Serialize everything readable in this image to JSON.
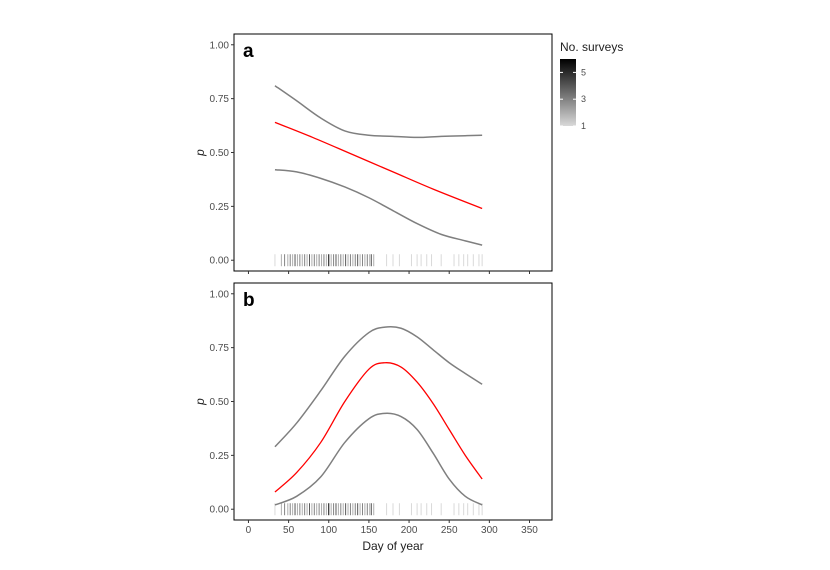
{
  "chart_data": [
    {
      "type": "line",
      "panel_label": "a",
      "ylabel": "p",
      "xlabel": "",
      "xlim": [
        0,
        360
      ],
      "ylim": [
        0,
        1
      ],
      "x_ticks": [
        0,
        50,
        100,
        150,
        200,
        250,
        300,
        350
      ],
      "y_ticks": [
        "0.00",
        "0.25",
        "0.50",
        "0.75",
        "1.00"
      ],
      "show_x_tick_labels": false,
      "colors": {
        "fit": "#ff0000",
        "ci": "#7f7f7f"
      },
      "series": [
        {
          "role": "fit",
          "x": [
            33,
            80,
            130,
            180,
            230,
            291
          ],
          "y": [
            0.64,
            0.57,
            0.49,
            0.41,
            0.33,
            0.24
          ]
        },
        {
          "role": "upper",
          "x": [
            33,
            60,
            90,
            120,
            150,
            180,
            210,
            240,
            270,
            291
          ],
          "y": [
            0.81,
            0.74,
            0.66,
            0.6,
            0.58,
            0.575,
            0.57,
            0.575,
            0.578,
            0.58
          ]
        },
        {
          "role": "lower",
          "x": [
            33,
            60,
            90,
            120,
            150,
            180,
            210,
            240,
            270,
            291
          ],
          "y": [
            0.42,
            0.41,
            0.38,
            0.34,
            0.29,
            0.23,
            0.17,
            0.12,
            0.09,
            0.07
          ]
        }
      ],
      "rug": [
        {
          "x": 33,
          "n": 1
        },
        {
          "x": 41,
          "n": 2
        },
        {
          "x": 45,
          "n": 3
        },
        {
          "x": 49,
          "n": 2
        },
        {
          "x": 52,
          "n": 3
        },
        {
          "x": 55,
          "n": 2
        },
        {
          "x": 58,
          "n": 4
        },
        {
          "x": 61,
          "n": 2
        },
        {
          "x": 64,
          "n": 3
        },
        {
          "x": 67,
          "n": 2
        },
        {
          "x": 70,
          "n": 3
        },
        {
          "x": 73,
          "n": 2
        },
        {
          "x": 76,
          "n": 4
        },
        {
          "x": 79,
          "n": 2
        },
        {
          "x": 82,
          "n": 3
        },
        {
          "x": 85,
          "n": 2
        },
        {
          "x": 88,
          "n": 3
        },
        {
          "x": 91,
          "n": 2
        },
        {
          "x": 94,
          "n": 3
        },
        {
          "x": 97,
          "n": 2
        },
        {
          "x": 100,
          "n": 6
        },
        {
          "x": 103,
          "n": 2
        },
        {
          "x": 106,
          "n": 3
        },
        {
          "x": 109,
          "n": 4
        },
        {
          "x": 112,
          "n": 2
        },
        {
          "x": 115,
          "n": 3
        },
        {
          "x": 118,
          "n": 2
        },
        {
          "x": 121,
          "n": 4
        },
        {
          "x": 124,
          "n": 2
        },
        {
          "x": 127,
          "n": 3
        },
        {
          "x": 130,
          "n": 2
        },
        {
          "x": 133,
          "n": 3
        },
        {
          "x": 136,
          "n": 4
        },
        {
          "x": 139,
          "n": 2
        },
        {
          "x": 142,
          "n": 3
        },
        {
          "x": 145,
          "n": 2
        },
        {
          "x": 148,
          "n": 3
        },
        {
          "x": 151,
          "n": 2
        },
        {
          "x": 153,
          "n": 4
        },
        {
          "x": 156,
          "n": 2
        },
        {
          "x": 172,
          "n": 1
        },
        {
          "x": 180,
          "n": 1
        },
        {
          "x": 188,
          "n": 1
        },
        {
          "x": 203,
          "n": 1
        },
        {
          "x": 210,
          "n": 1
        },
        {
          "x": 215,
          "n": 1
        },
        {
          "x": 222,
          "n": 1
        },
        {
          "x": 228,
          "n": 1
        },
        {
          "x": 240,
          "n": 1
        },
        {
          "x": 256,
          "n": 1
        },
        {
          "x": 262,
          "n": 1
        },
        {
          "x": 268,
          "n": 1
        },
        {
          "x": 273,
          "n": 1
        },
        {
          "x": 280,
          "n": 1
        },
        {
          "x": 287,
          "n": 1
        },
        {
          "x": 291,
          "n": 1
        }
      ]
    },
    {
      "type": "line",
      "panel_label": "b",
      "ylabel": "p",
      "xlabel": "Day of year",
      "xlim": [
        0,
        360
      ],
      "ylim": [
        0,
        1
      ],
      "x_ticks": [
        0,
        50,
        100,
        150,
        200,
        250,
        300,
        350
      ],
      "y_ticks": [
        "0.00",
        "0.25",
        "0.50",
        "0.75",
        "1.00"
      ],
      "show_x_tick_labels": true,
      "colors": {
        "fit": "#ff0000",
        "ci": "#7f7f7f"
      },
      "series": [
        {
          "role": "fit",
          "x": [
            33,
            60,
            90,
            120,
            150,
            170,
            190,
            210,
            230,
            250,
            270,
            291
          ],
          "y": [
            0.08,
            0.17,
            0.31,
            0.5,
            0.65,
            0.68,
            0.66,
            0.59,
            0.49,
            0.37,
            0.25,
            0.14
          ]
        },
        {
          "role": "upper",
          "x": [
            33,
            60,
            90,
            120,
            150,
            170,
            190,
            210,
            230,
            250,
            270,
            291
          ],
          "y": [
            0.29,
            0.4,
            0.55,
            0.71,
            0.82,
            0.845,
            0.84,
            0.8,
            0.74,
            0.68,
            0.63,
            0.58
          ]
        },
        {
          "role": "lower",
          "x": [
            33,
            60,
            90,
            120,
            150,
            170,
            190,
            210,
            230,
            250,
            270,
            291
          ],
          "y": [
            0.02,
            0.06,
            0.15,
            0.31,
            0.42,
            0.445,
            0.43,
            0.37,
            0.26,
            0.14,
            0.06,
            0.02
          ]
        }
      ],
      "rug": [
        {
          "x": 33,
          "n": 1
        },
        {
          "x": 41,
          "n": 2
        },
        {
          "x": 45,
          "n": 3
        },
        {
          "x": 49,
          "n": 2
        },
        {
          "x": 52,
          "n": 3
        },
        {
          "x": 55,
          "n": 2
        },
        {
          "x": 58,
          "n": 4
        },
        {
          "x": 61,
          "n": 2
        },
        {
          "x": 64,
          "n": 3
        },
        {
          "x": 67,
          "n": 2
        },
        {
          "x": 70,
          "n": 3
        },
        {
          "x": 73,
          "n": 2
        },
        {
          "x": 76,
          "n": 4
        },
        {
          "x": 79,
          "n": 2
        },
        {
          "x": 82,
          "n": 3
        },
        {
          "x": 85,
          "n": 2
        },
        {
          "x": 88,
          "n": 3
        },
        {
          "x": 91,
          "n": 2
        },
        {
          "x": 94,
          "n": 3
        },
        {
          "x": 97,
          "n": 2
        },
        {
          "x": 100,
          "n": 6
        },
        {
          "x": 103,
          "n": 2
        },
        {
          "x": 106,
          "n": 3
        },
        {
          "x": 109,
          "n": 4
        },
        {
          "x": 112,
          "n": 2
        },
        {
          "x": 115,
          "n": 3
        },
        {
          "x": 118,
          "n": 2
        },
        {
          "x": 121,
          "n": 4
        },
        {
          "x": 124,
          "n": 2
        },
        {
          "x": 127,
          "n": 3
        },
        {
          "x": 130,
          "n": 2
        },
        {
          "x": 133,
          "n": 3
        },
        {
          "x": 136,
          "n": 4
        },
        {
          "x": 139,
          "n": 2
        },
        {
          "x": 142,
          "n": 3
        },
        {
          "x": 145,
          "n": 2
        },
        {
          "x": 148,
          "n": 3
        },
        {
          "x": 151,
          "n": 2
        },
        {
          "x": 153,
          "n": 4
        },
        {
          "x": 156,
          "n": 2
        },
        {
          "x": 172,
          "n": 1
        },
        {
          "x": 180,
          "n": 1
        },
        {
          "x": 188,
          "n": 1
        },
        {
          "x": 203,
          "n": 1
        },
        {
          "x": 210,
          "n": 1
        },
        {
          "x": 215,
          "n": 1
        },
        {
          "x": 222,
          "n": 1
        },
        {
          "x": 228,
          "n": 1
        },
        {
          "x": 240,
          "n": 1
        },
        {
          "x": 256,
          "n": 1
        },
        {
          "x": 262,
          "n": 1
        },
        {
          "x": 268,
          "n": 1
        },
        {
          "x": 273,
          "n": 1
        },
        {
          "x": 280,
          "n": 1
        },
        {
          "x": 287,
          "n": 1
        },
        {
          "x": 291,
          "n": 1
        }
      ]
    }
  ],
  "legend": {
    "title": "No. surveys",
    "placement": "right",
    "range": [
      1,
      6
    ],
    "labels": [
      "1",
      "3",
      "5"
    ],
    "label_values": [
      1,
      3,
      5
    ],
    "color_low": "#d9d9d9",
    "color_high": "#000000"
  }
}
